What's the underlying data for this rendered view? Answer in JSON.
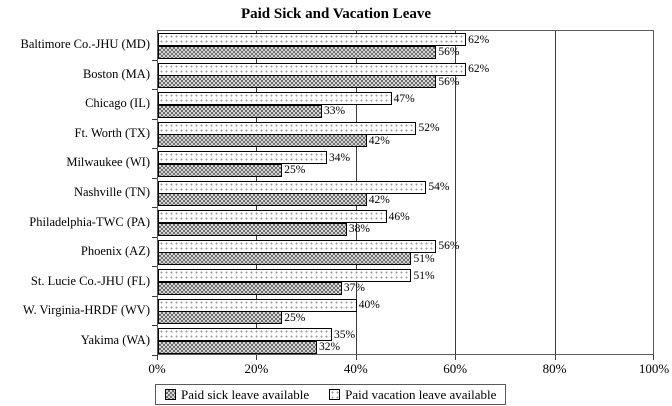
{
  "chart_data": {
    "type": "bar",
    "orientation": "horizontal",
    "title": "Paid Sick and Vacation Leave",
    "categories": [
      "Baltimore Co.-JHU (MD)",
      "Boston (MA)",
      "Chicago (IL)",
      "Ft. Worth (TX)",
      "Milwaukee (WI)",
      "Nashville (TN)",
      "Philadelphia-TWC (PA)",
      "Phoenix (AZ)",
      "St. Lucie Co.-JHU (FL)",
      "W. Virginia-HRDF (WV)",
      "Yakima (WA)"
    ],
    "series": [
      {
        "name": "Paid sick leave available",
        "key": "sick",
        "pattern": "dark-checker",
        "values": [
          56,
          56,
          33,
          42,
          25,
          42,
          38,
          51,
          37,
          25,
          32
        ]
      },
      {
        "name": "Paid vacation leave available",
        "key": "vacation",
        "pattern": "light-dots",
        "values": [
          62,
          62,
          47,
          52,
          34,
          54,
          46,
          56,
          51,
          40,
          35
        ]
      }
    ],
    "bar_order_top_to_bottom": [
      "vacation",
      "sick"
    ],
    "value_label_format": "{v}%",
    "xlim": [
      0,
      100
    ],
    "x_ticks": [
      0,
      20,
      40,
      60,
      80,
      100
    ],
    "x_tick_labels": [
      "0%",
      "20%",
      "40%",
      "60%",
      "80%",
      "100%"
    ],
    "gridlines": [
      20,
      40,
      60,
      80
    ],
    "grid": "vertical",
    "legend_position": "bottom",
    "colors": {
      "sick_fill": "#a8a8a8",
      "vacation_fill": "#ffffff",
      "bar_border": "#000000",
      "axis": "#5a5a5a"
    }
  }
}
